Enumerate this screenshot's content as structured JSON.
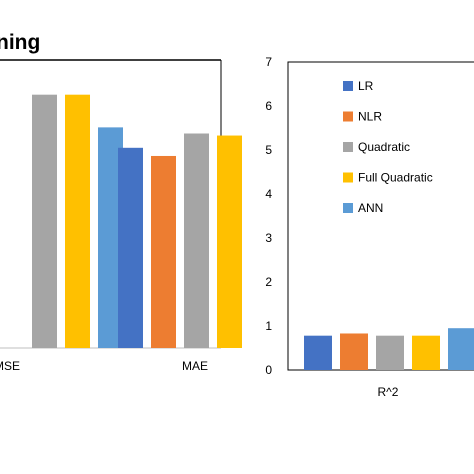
{
  "colors": {
    "LR": "#4472C4",
    "NLR": "#ED7D31",
    "Quadratic": "#A5A5A5",
    "Full Quadratic": "#FFC000",
    "ANN": "#5B9BD5"
  },
  "chart_data": [
    {
      "type": "bar",
      "title": "ning",
      "categories": [
        "MSE",
        "MAE"
      ],
      "visible_category_labels": [
        "MSE",
        "MAE"
      ],
      "series": [
        {
          "name": "LR",
          "values": [
            null,
            4.9
          ]
        },
        {
          "name": "NLR",
          "values": [
            null,
            4.7
          ]
        },
        {
          "name": "Quadratic",
          "values": [
            6.2,
            5.25
          ]
        },
        {
          "name": "Full Quadratic",
          "values": [
            6.2,
            5.2
          ]
        },
        {
          "name": "ANN",
          "values": [
            5.4,
            null
          ]
        }
      ],
      "ylim": [
        0,
        7
      ],
      "grid": false,
      "legend": "none"
    },
    {
      "type": "bar",
      "title": "",
      "categories": [
        "R^2"
      ],
      "series": [
        {
          "name": "LR",
          "values": [
            0.78
          ]
        },
        {
          "name": "NLR",
          "values": [
            0.83
          ]
        },
        {
          "name": "Quadratic",
          "values": [
            0.78
          ]
        },
        {
          "name": "Full Quadratic",
          "values": [
            0.78
          ]
        },
        {
          "name": "ANN",
          "values": [
            0.95
          ]
        }
      ],
      "yticks": [
        "0",
        "1",
        "2",
        "3",
        "4",
        "5",
        "6",
        "7"
      ],
      "ylim": [
        0,
        7
      ],
      "grid": false,
      "legend": "top-left",
      "legend_entries": [
        "LR",
        "NLR",
        "Quadratic",
        "Full Quadratic",
        "ANN"
      ]
    }
  ]
}
